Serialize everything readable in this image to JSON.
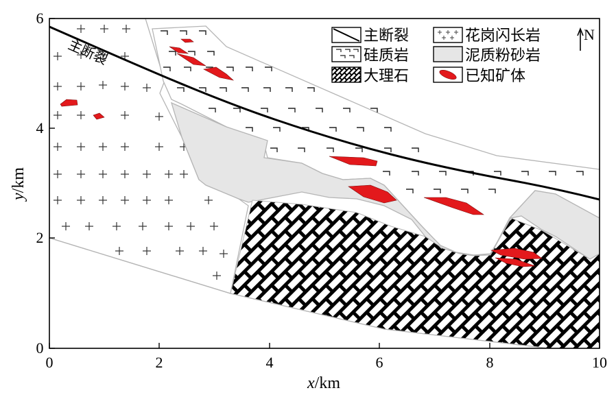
{
  "map": {
    "xlabel_var": "x",
    "xlabel_unit": "/km",
    "ylabel_var": "y",
    "ylabel_unit": "/km",
    "xlim": [
      0,
      10
    ],
    "ylim": [
      0,
      6
    ],
    "x_ticks": [
      "0",
      "2",
      "4",
      "6",
      "8",
      "10"
    ],
    "y_ticks": [
      "0",
      "2",
      "4",
      "6"
    ],
    "fault_label": "主断裂",
    "north_label": "N"
  },
  "legend": {
    "items": [
      {
        "label": "主断裂",
        "symbol": "fault-line-icon"
      },
      {
        "label": "花岗闪长岩",
        "symbol": "granodiorite-pattern-icon"
      },
      {
        "label": "硅质岩",
        "symbol": "siliceous-rock-pattern-icon"
      },
      {
        "label": "泥质粉砂岩",
        "symbol": "siltstone-fill-icon"
      },
      {
        "label": "大理石",
        "symbol": "marble-pattern-icon"
      },
      {
        "label": "已知矿体",
        "symbol": "ore-body-icon"
      }
    ]
  },
  "colors": {
    "ore": "#e3191c",
    "siltstone": "#e6e6e6",
    "outline": "#b5b5b5",
    "fault": "#000000"
  }
}
